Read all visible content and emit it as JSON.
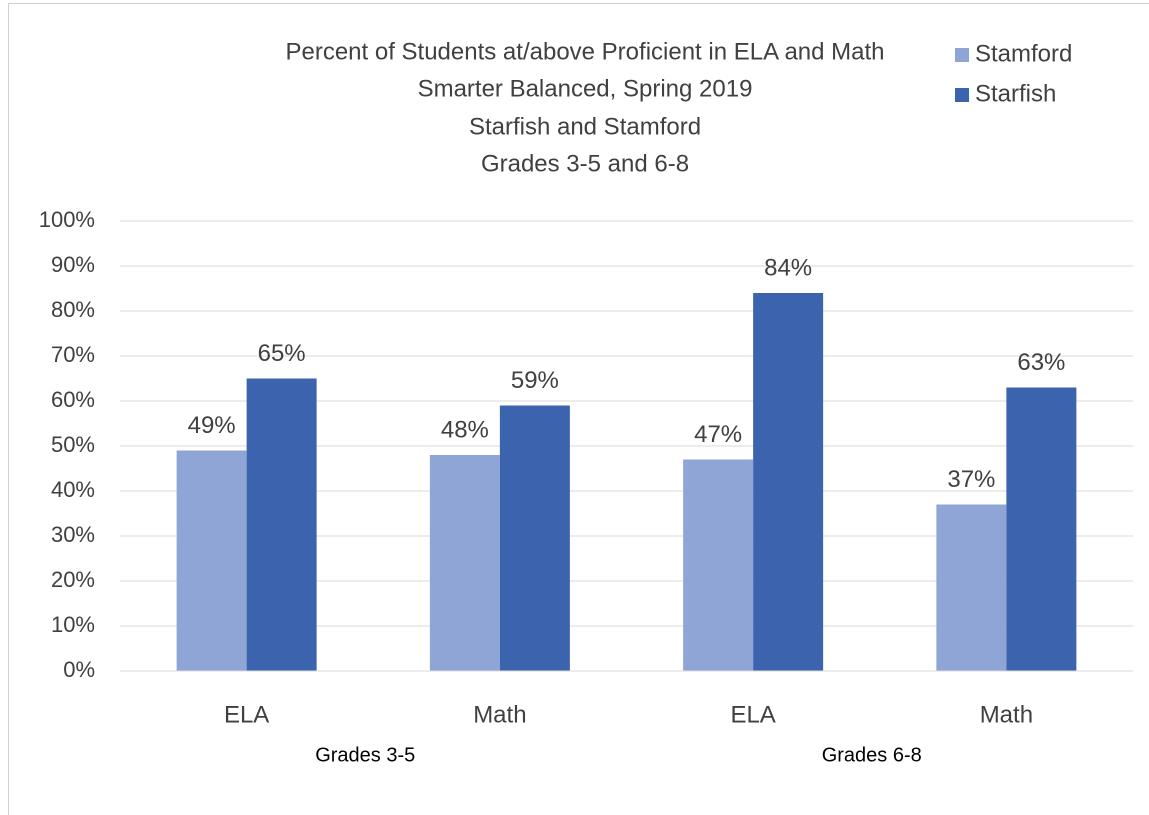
{
  "chart_data": {
    "type": "bar",
    "title": "Percent of Students at/above Proficient in ELA and Math",
    "subtitle": [
      "Smarter Balanced, Spring 2019",
      "Starfish and Stamford",
      "Grades 3-5 and 6-8"
    ],
    "categories": [
      "ELA",
      "Math",
      "ELA",
      "Math"
    ],
    "category_groups": [
      "Grades 3-5",
      "Grades 6-8"
    ],
    "series": [
      {
        "name": "Stamford",
        "color": "#8fa5d6",
        "values": [
          49,
          48,
          47,
          37
        ],
        "value_labels": [
          "49%",
          "48%",
          "47%",
          "37%"
        ]
      },
      {
        "name": "Starfish",
        "color": "#3c64ae",
        "values": [
          65,
          59,
          84,
          63
        ],
        "value_labels": [
          "65%",
          "59%",
          "84%",
          "63%"
        ]
      }
    ],
    "ylim": [
      0,
      100
    ],
    "yticks": [
      {
        "value": 0,
        "label": "0%"
      },
      {
        "value": 10,
        "label": "10%"
      },
      {
        "value": 20,
        "label": "20%"
      },
      {
        "value": 30,
        "label": "30%"
      },
      {
        "value": 40,
        "label": "40%"
      },
      {
        "value": 50,
        "label": "50%"
      },
      {
        "value": 60,
        "label": "60%"
      },
      {
        "value": 70,
        "label": "70%"
      },
      {
        "value": 80,
        "label": "80%"
      },
      {
        "value": 90,
        "label": "90%"
      },
      {
        "value": 100,
        "label": "100%"
      }
    ],
    "grid": true,
    "legend": "top-right"
  }
}
